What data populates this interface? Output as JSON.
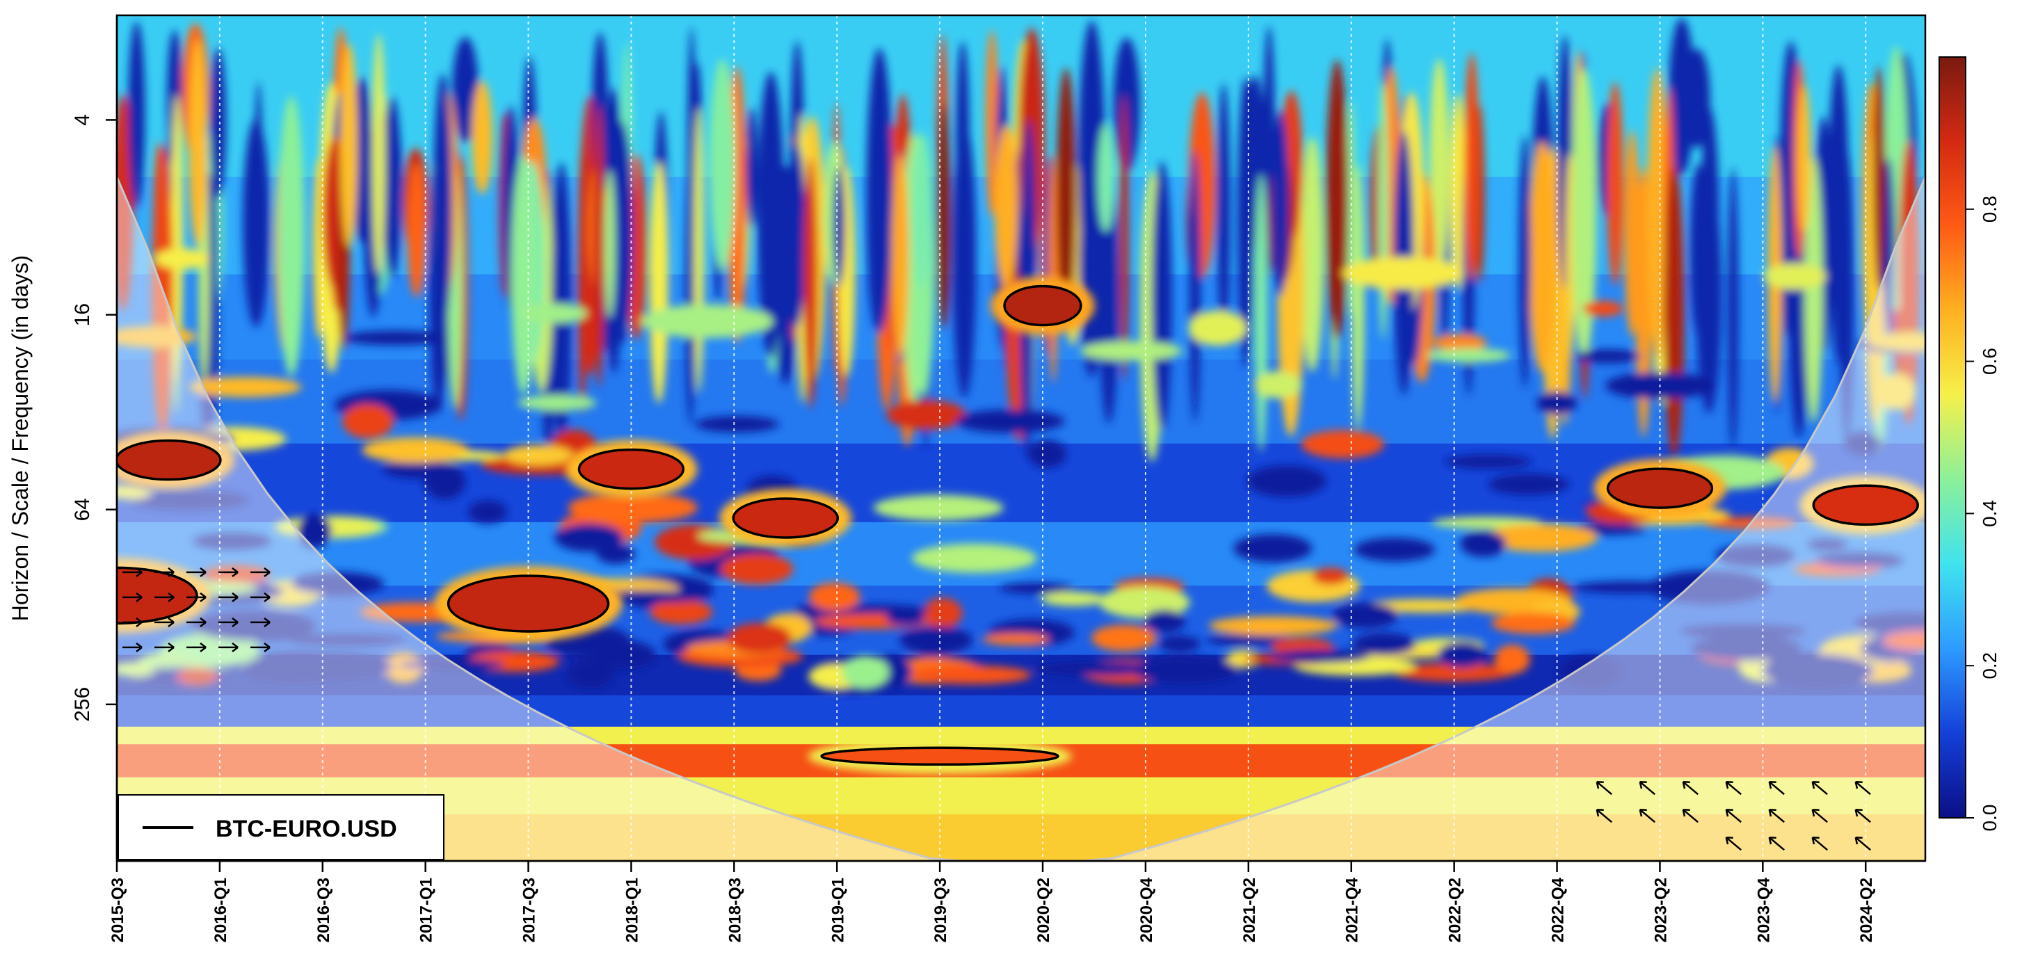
{
  "chart_data": {
    "type": "heatmap",
    "title": "",
    "subtitle": "",
    "xlabel": "",
    "ylabel": "Horizon / Scale / Frequency (in days)",
    "x_ticks": [
      "2015-Q3",
      "2016-Q1",
      "2016-Q3",
      "2017-Q1",
      "2017-Q3",
      "2018-Q1",
      "2018-Q3",
      "2019-Q1",
      "2019-Q3",
      "2020-Q2",
      "2020-Q4",
      "2021-Q2",
      "2021-Q4",
      "2022-Q2",
      "2022-Q4",
      "2023-Q2",
      "2023-Q4",
      "2024-Q2"
    ],
    "y_ticks": [
      "4",
      "16",
      "64",
      "256"
    ],
    "y_scale": "log2",
    "ylim": [
      1.9,
      780
    ],
    "y_direction": "reversed",
    "colorbar": {
      "ticks": [
        "0.0",
        "0.2",
        "0.4",
        "0.6",
        "0.8"
      ],
      "range": [
        0,
        1
      ],
      "colors": [
        "#0a0f86",
        "#1440d8",
        "#2d9bff",
        "#3fe3ef",
        "#8bf09a",
        "#f6f04a",
        "#ffb020",
        "#ff5a14",
        "#d42a12",
        "#7a1a10"
      ]
    },
    "grid": "vertical dotted at x ticks",
    "legend": {
      "position": "bottom-left",
      "entries": [
        {
          "label": "BTC-EURO.USD",
          "style": "solid-black-line"
        }
      ]
    },
    "cone_of_influence": "shaded outside U-shaped boundary",
    "significant_regions": [
      {
        "x": "2015-Q4",
        "scale_days": 45,
        "coherence": 0.92
      },
      {
        "x": "2017-Q3",
        "scale_days": 125,
        "coherence": 0.91
      },
      {
        "x": "2018-Q1",
        "scale_days": 48,
        "coherence": 0.9
      },
      {
        "x": "2018-Q4",
        "scale_days": 68,
        "coherence": 0.9
      },
      {
        "x": "2019-Q3",
        "scale_days": 370,
        "coherence": 0.8
      },
      {
        "x": "2020-Q2",
        "scale_days": 15,
        "coherence": 0.93
      },
      {
        "x": "2023-Q2",
        "scale_days": 55,
        "coherence": 0.92
      },
      {
        "x": "2024-Q2",
        "scale_days": 62,
        "coherence": 0.88
      },
      {
        "x": "2015-Q3",
        "scale_days": 118,
        "coherence": 0.91
      }
    ]
  }
}
